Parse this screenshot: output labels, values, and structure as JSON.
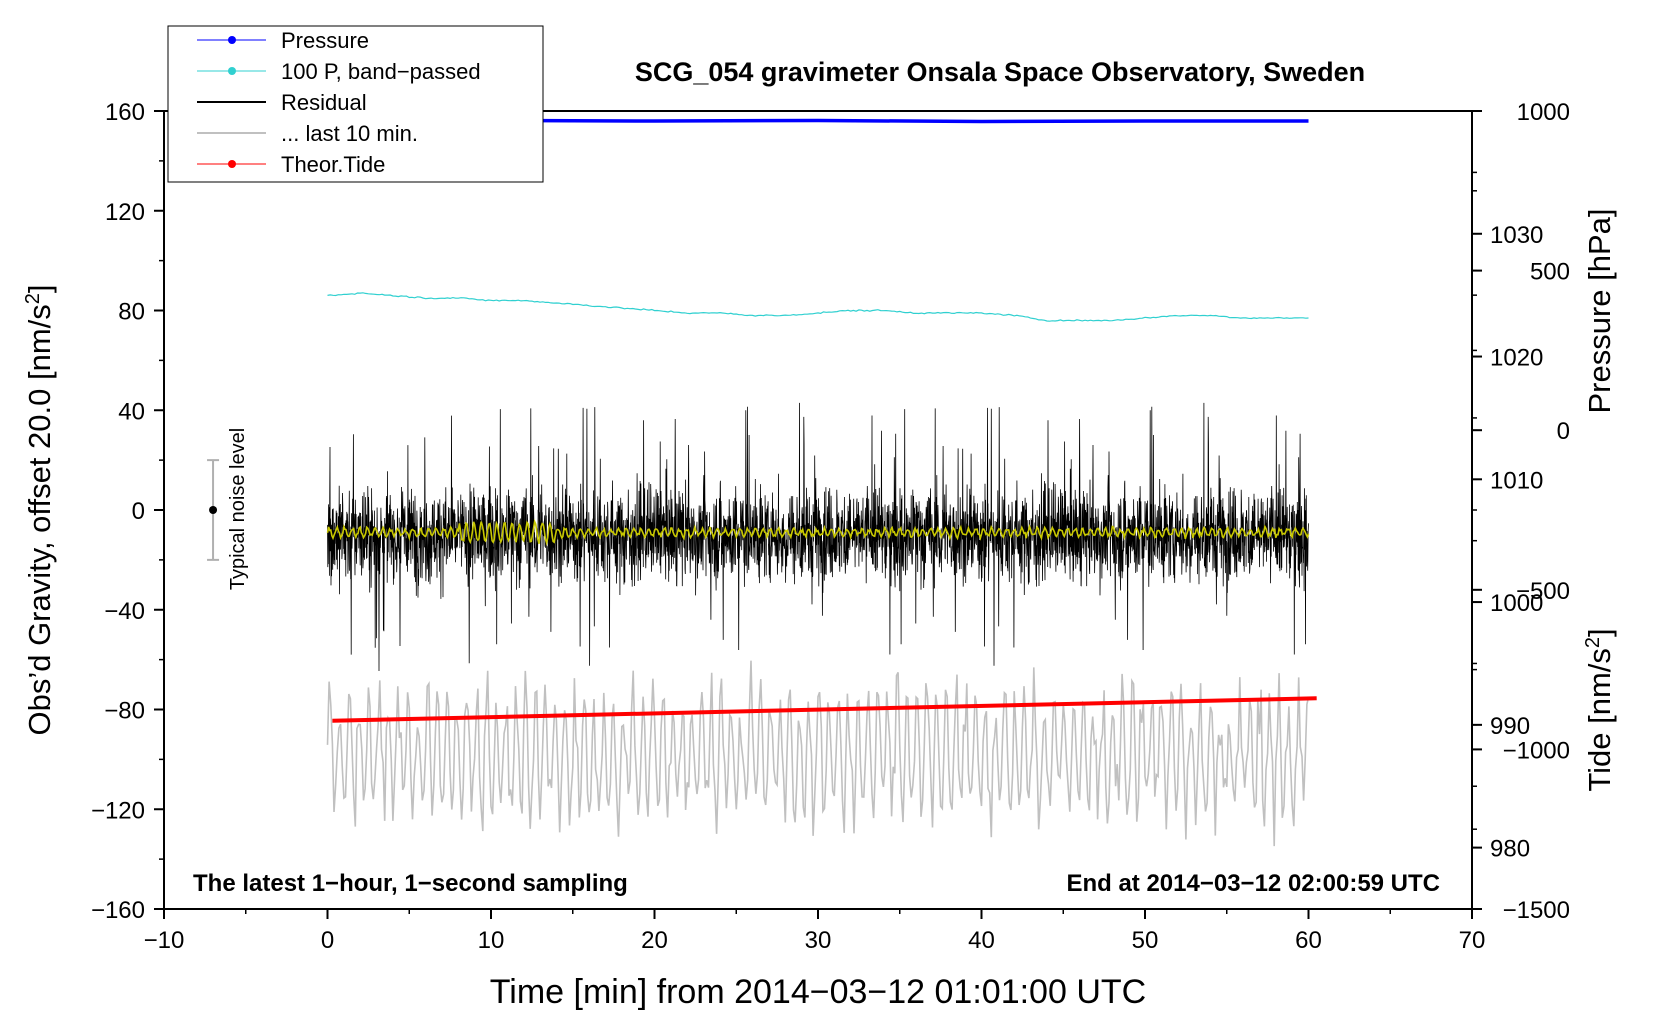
{
  "chart_data": {
    "type": "line",
    "title": "SCG_054 gravimeter Onsala Space Observatory, Sweden",
    "xlabel": "Time [min] from 2014−03−12 01:01:00 UTC",
    "ylabel_prefix": "Obs’d Gravity, offset 20.0 [nm/s",
    "ylabel_sup": "2",
    "ylabel_suffix": "]",
    "y2label": "Pressure [hPa]",
    "y3label_prefix": "Tide [nm/s",
    "y3label_sup": "2",
    "y3label_suffix": "]",
    "xlim": [
      -10,
      70
    ],
    "ylim": [
      -160,
      160
    ],
    "pressure_lim": [
      975,
      1040
    ],
    "tide_lim": [
      -1500,
      1000
    ],
    "x_ticks": [
      "−10",
      "0",
      "10",
      "20",
      "30",
      "40",
      "50",
      "60",
      "70"
    ],
    "x_tick_values": [
      -10,
      0,
      10,
      20,
      30,
      40,
      50,
      60,
      70
    ],
    "y_ticks": [
      "160",
      "120",
      "80",
      "40",
      "0",
      "−40",
      "−80",
      "−120",
      "−160"
    ],
    "y_tick_values": [
      160,
      120,
      80,
      40,
      0,
      -40,
      -80,
      -120,
      -160
    ],
    "pressure_ticks": [
      "1030",
      "1020",
      "1010",
      "1000",
      "990",
      "980"
    ],
    "pressure_tick_values": [
      1030,
      1020,
      1010,
      1000,
      990,
      980
    ],
    "tide_ticks": [
      "1000",
      "500",
      "0",
      "−500",
      "−1000",
      "−1500"
    ],
    "tide_tick_values": [
      1000,
      500,
      0,
      -500,
      -1000,
      -1500
    ],
    "annotation_left": "The latest 1−hour, 1−second sampling",
    "annotation_right": "End at 2014−03−12 02:00:59 UTC",
    "noise_label": "Typical noise level",
    "noise_bar": {
      "x": -7,
      "center": 0,
      "low": -20,
      "high": 20
    },
    "legend": [
      {
        "label": "Pressure",
        "color": "#0000ff",
        "marker": true
      },
      {
        "label": "100 P, band−passed",
        "color": "#30d0d0",
        "marker": true
      },
      {
        "label": "Residual",
        "color": "#000000",
        "marker": false
      },
      {
        "label": "... last 10 min.",
        "color": "#c0c0c0",
        "marker": false
      },
      {
        "label": "Theor.Tide",
        "color": "#ff0000",
        "marker": true
      }
    ],
    "series": [
      {
        "name": "Pressure",
        "color": "#0000ff",
        "axis": "left",
        "x": [
          0,
          10,
          20,
          30,
          40,
          50,
          60
        ],
        "y": [
          156.5,
          156.2,
          156.0,
          156.2,
          155.8,
          156.0,
          156.0
        ]
      },
      {
        "name": "100 P, band−passed",
        "color": "#30d0d0",
        "axis": "left",
        "x": [
          0,
          2,
          4,
          6,
          8,
          10,
          12,
          14,
          16,
          18,
          20,
          22,
          24,
          26,
          28,
          30,
          32,
          34,
          36,
          38,
          40,
          42,
          44,
          46,
          48,
          50,
          52,
          54,
          56,
          58,
          60
        ],
        "y": [
          86,
          87,
          86,
          85,
          85,
          84,
          84,
          83,
          82,
          81,
          80,
          79,
          79,
          78,
          78,
          79,
          80,
          80,
          79,
          79,
          79,
          78,
          76,
          76,
          76,
          77,
          78,
          78,
          77,
          77,
          77
        ]
      },
      {
        "name": "Residual",
        "color": "#000000",
        "axis": "left",
        "x_range": [
          0,
          60
        ],
        "center": -10,
        "amplitude_envelope": 40
      },
      {
        "name": "Smoothed residual",
        "color": "#c8c800",
        "axis": "left",
        "x_range": [
          0,
          60
        ],
        "center": -9
      },
      {
        "name": "... last 10 min.",
        "color": "#c0c0c0",
        "axis": "left",
        "x_range": [
          0,
          60
        ],
        "center": -98,
        "amplitude_envelope": 30
      },
      {
        "name": "Theor.Tide",
        "color": "#ff0000",
        "axis": "left",
        "x": [
          0.3,
          60.5
        ],
        "y": [
          -84.5,
          -75.5
        ]
      }
    ]
  }
}
